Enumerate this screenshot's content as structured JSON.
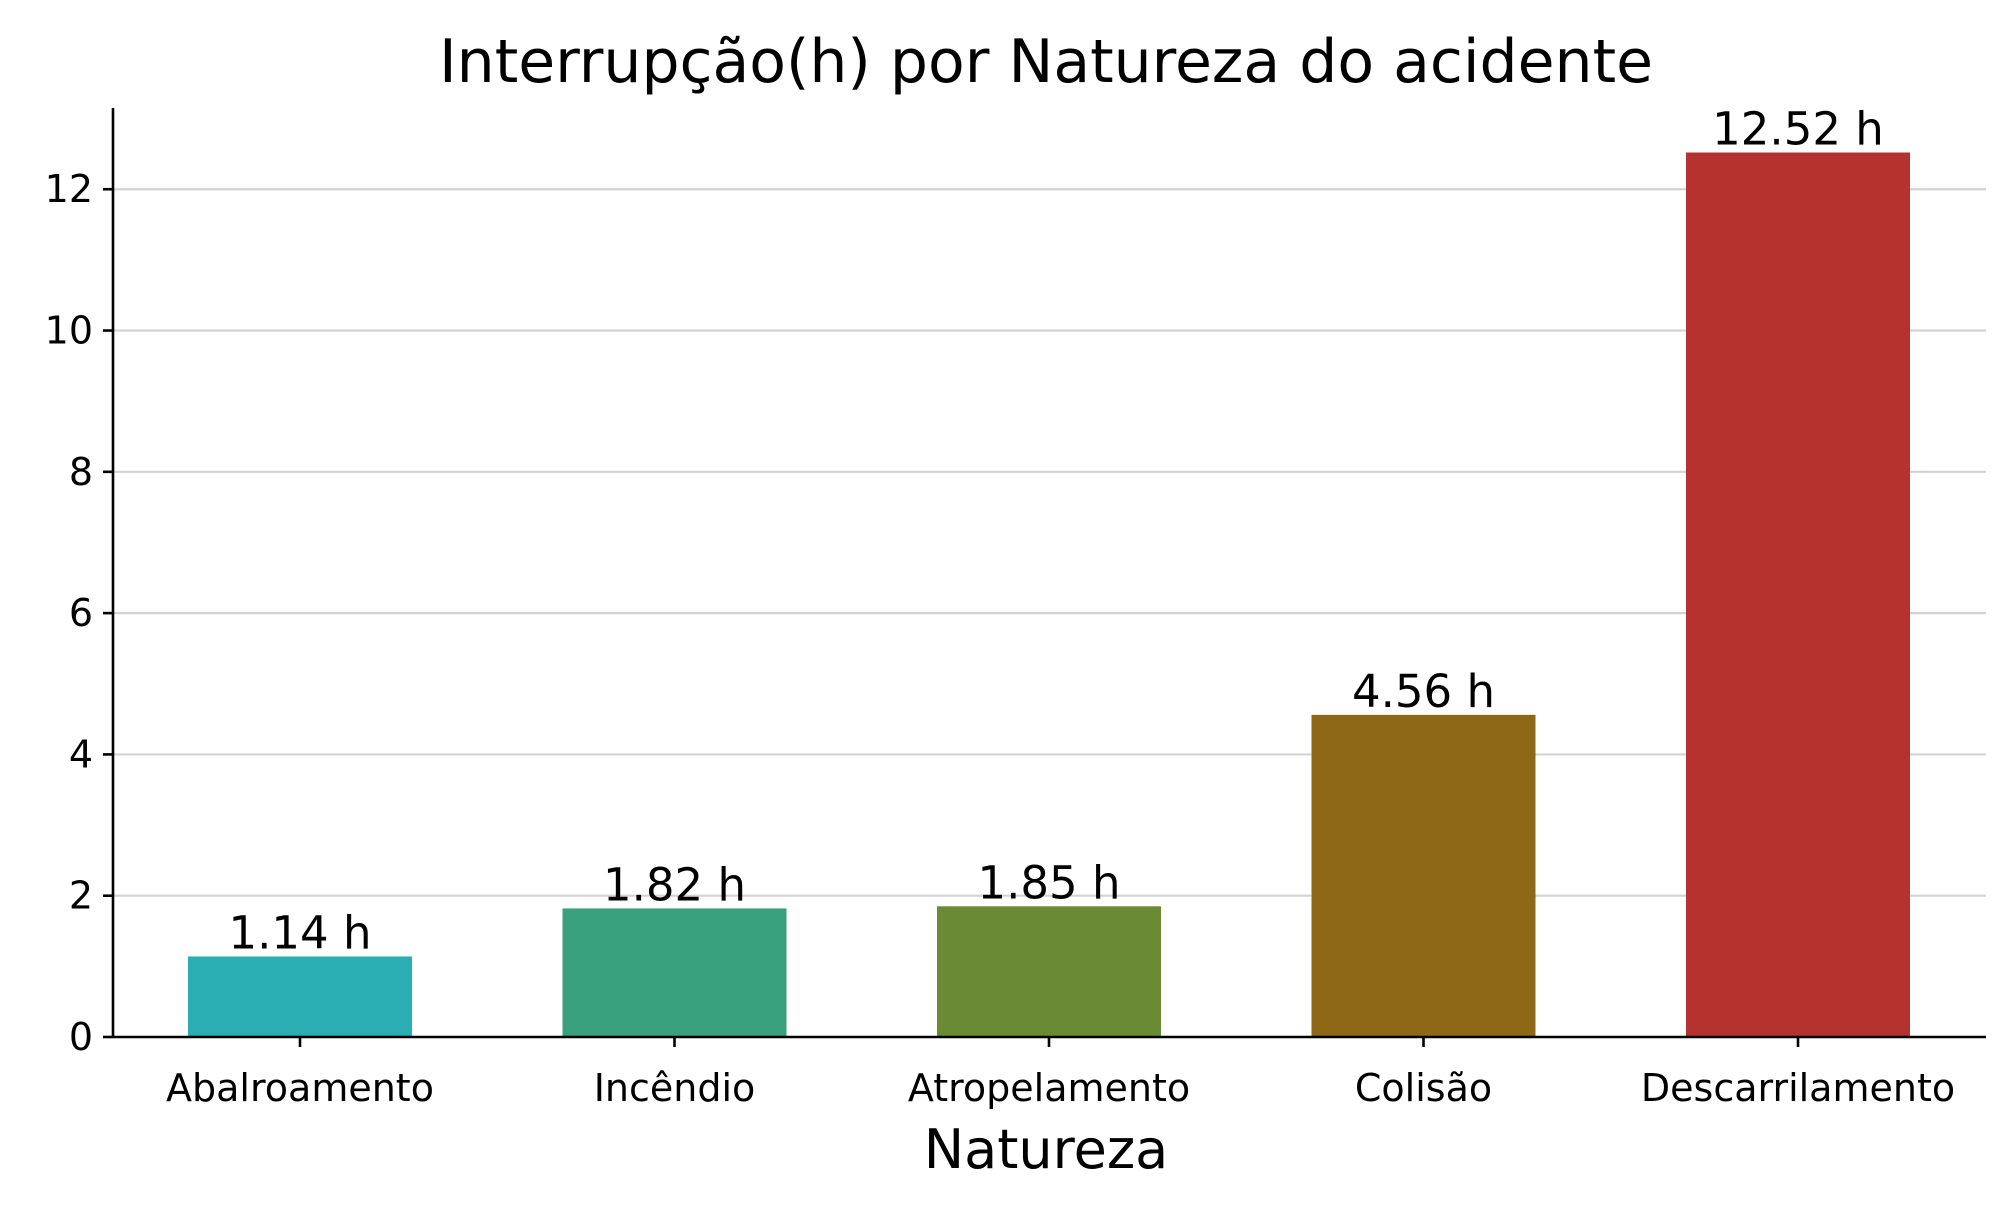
{
  "chart_data": {
    "type": "bar",
    "title": "Interrupção(h) por Natureza do acidente",
    "xlabel": "Natureza",
    "ylabel": "",
    "categories": [
      "Abalroamento",
      "Incêndio",
      "Atropelamento",
      "Colisão",
      "Descarrilamento"
    ],
    "values": [
      1.14,
      1.82,
      1.85,
      4.56,
      12.52
    ],
    "value_labels": [
      "1.14 h",
      "1.82 h",
      "1.85 h",
      "4.56 h",
      "12.52 h"
    ],
    "colors": [
      "#2aaeb3",
      "#38a07c",
      "#6a8a34",
      "#8f6817",
      "#b5322e"
    ],
    "ylim": [
      0,
      13.15
    ],
    "yticks": [
      0,
      2,
      4,
      6,
      8,
      10,
      12
    ],
    "grid": "y",
    "legend": "none"
  }
}
